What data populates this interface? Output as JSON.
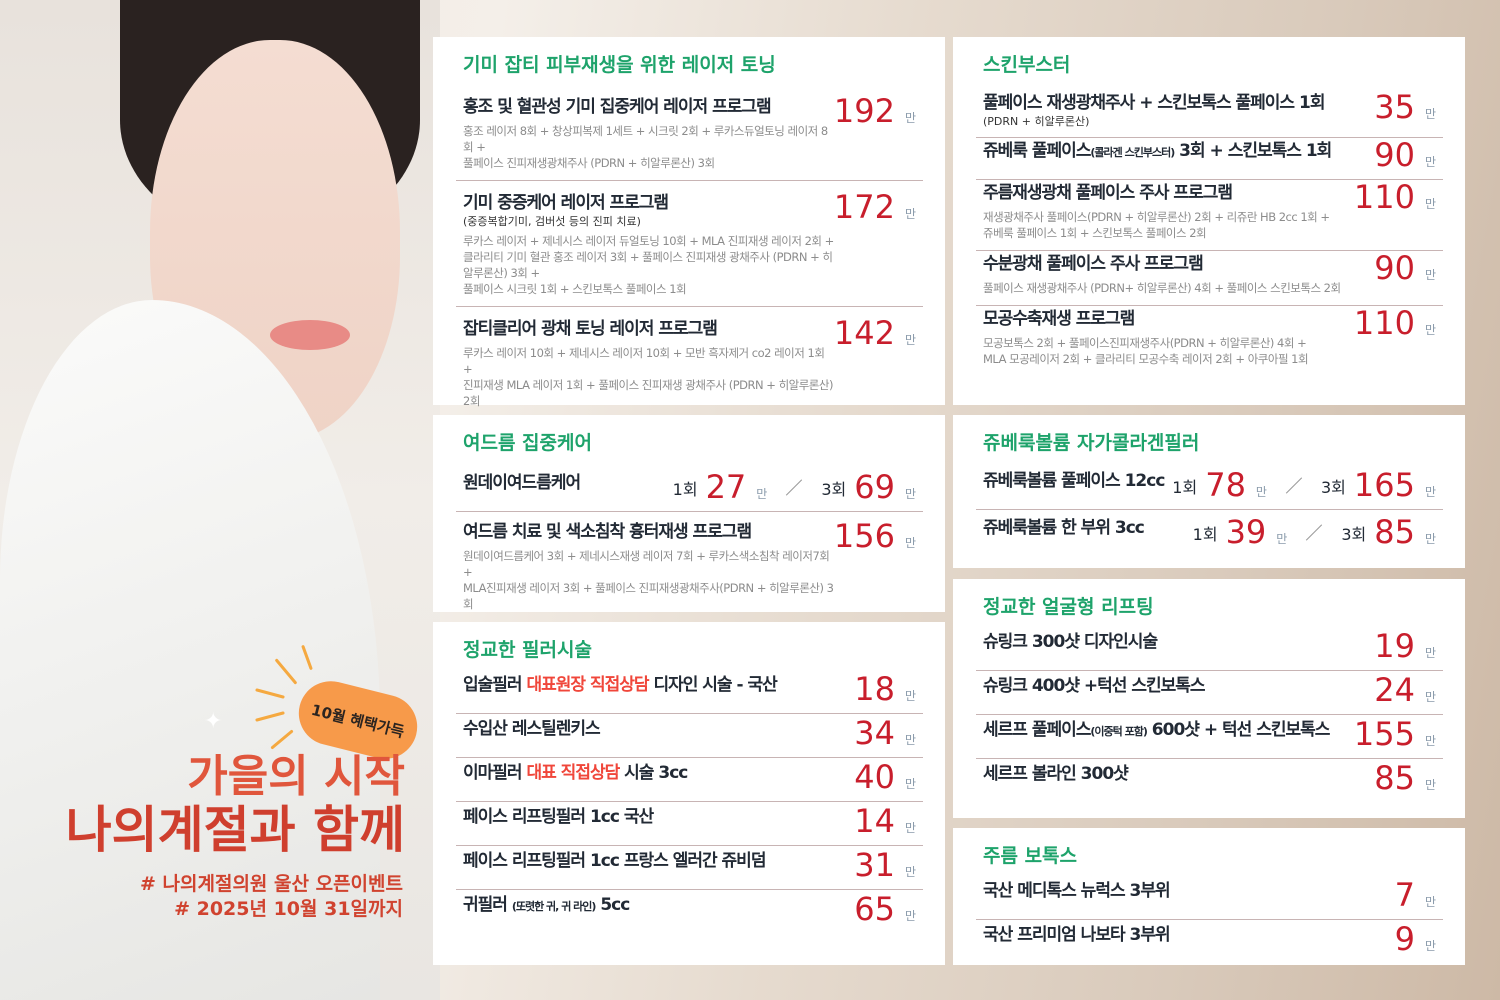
{
  "colors": {
    "accent_green": "#1ea36b",
    "price_red": "#c81e2c",
    "highlight_red": "#f0463a",
    "badge_orange": "#f79a4a",
    "headline_red": "#cf3f2e"
  },
  "promo": {
    "badge": "10월 혜택가득",
    "headline1": "가을의 시작",
    "headline2": "나의계절과 함께",
    "tag1": "# 나의계절의원 울산 오픈이벤트",
    "tag2": "# 2025년 10월 31일까지"
  },
  "unit": "만",
  "sections": [
    {
      "title": "기미 잡티 피부재생을 위한 레이저 토닝",
      "items": [
        {
          "name": [
            {
              "t": "홍조 및 혈관성 기미 집중케어 레이저 프로그램"
            }
          ],
          "price": "192",
          "detail": "홍조 레이저 8회 + 창상피복제 1세트 + 시크릿 2회 + 루카스듀얼토닝 레이저 8회 +\n풀페이스 진피재생광채주사 (PDRN + 히알루론산) 3회"
        },
        {
          "name": [
            {
              "t": "기미 중증케어 레이저 프로그램"
            }
          ],
          "sub": "(중증복합기미, 검버섯 등의 진피 치료)",
          "price": "172",
          "detail": "루카스 레이저 + 제네시스 레이저 듀얼토닝 10회 + MLA 진피재생 레이저 2회 +\n클라리티 기미 혈관 홍조 레이저 3회 + 풀페이스 진피재생 광채주사 (PDRN + 히알루론산)  3회 +\n풀페이스 시크릿 1회 + 스킨보톡스 풀페이스 1회"
        },
        {
          "name": [
            {
              "t": "잡티클리어 광채 토닝 레이저 프로그램"
            }
          ],
          "price": "142",
          "detail": "루카스 레이저 10회 + 제네시스 레이저 10회 + 모반 흑자제거 co2 레이저 1회 +\n진피재생 MLA 레이저 1회 + 풀페이스 진피재생 광채주사 (PDRN + 히알루론산) 2회"
        }
      ]
    },
    {
      "title": "여드름 집중케어",
      "items": [
        {
          "name": [
            {
              "t": "원데이여드름케어"
            }
          ],
          "dual": [
            {
              "count": "1회",
              "price": "27"
            },
            {
              "count": "3회",
              "price": "69"
            }
          ]
        },
        {
          "name": [
            {
              "t": "여드름 치료 및 색소침착 흉터재생 프로그램"
            }
          ],
          "price": "156",
          "detail": "원데이여드름케어 3회 + 제네시스재생 레이저 7회 + 루카스색소침착 레이저7회 +\nMLA진피재생 레이저 3회 + 풀페이스 진피재생광채주사(PDRN + 히알루론산) 3회"
        }
      ]
    },
    {
      "title": "정교한 필러시술",
      "items": [
        {
          "name": [
            {
              "t": "입술필러 "
            },
            {
              "t": "대표원장 직접상담",
              "h": true
            },
            {
              "t": " 디자인 시술 - 국산"
            }
          ],
          "price": "18"
        },
        {
          "name": [
            {
              "t": "수입산 레스틸렌키스"
            }
          ],
          "price": "34"
        },
        {
          "name": [
            {
              "t": "이마필러 "
            },
            {
              "t": "대표 직접상담",
              "h": true
            },
            {
              "t": " 시술 3cc"
            }
          ],
          "price": "40"
        },
        {
          "name": [
            {
              "t": "페이스 리프팅필러 1cc 국산"
            }
          ],
          "price": "14"
        },
        {
          "name": [
            {
              "t": "페이스 리프팅필러 1cc 프랑스 엘러간 쥬비덤"
            }
          ],
          "price": "31"
        },
        {
          "name": [
            {
              "t": "귀필러 "
            },
            {
              "t": "(또렷한 귀, 귀 라인)",
              "s": true
            },
            {
              "t": "  5cc"
            }
          ],
          "price": "65"
        }
      ]
    },
    {
      "title": "스킨부스터",
      "items": [
        {
          "name": [
            {
              "t": "풀페이스 재생광채주사 + 스킨보톡스 풀페이스 1회"
            }
          ],
          "sub": " (PDRN + 히알루론산)",
          "price": "35"
        },
        {
          "name": [
            {
              "t": "쥬베룩 풀페이스"
            },
            {
              "t": "(콜라겐 스킨부스터)",
              "s": true
            },
            {
              "t": " 3회 + 스킨보톡스 1회"
            }
          ],
          "price": "90"
        },
        {
          "name": [
            {
              "t": "주름재생광채 풀페이스 주사 프로그램"
            }
          ],
          "price": "110",
          "detail": "재생광채주사 풀페이스(PDRN + 히알루론산) 2회 + 리쥬란 HB 2cc 1회 +\n쥬베룩 풀페이스 1회 + 스킨보톡스 풀페이스 2회"
        },
        {
          "name": [
            {
              "t": "수분광채 풀페이스 주사  프로그램"
            }
          ],
          "price": "90",
          "detail": "풀페이스 재생광채주사 (PDRN+ 히알루론산) 4회 + 풀페이스 스킨보톡스 2회"
        },
        {
          "name": [
            {
              "t": "모공수축재생 프로그램"
            }
          ],
          "price": "110",
          "detail": "모공보톡스 2회 + 풀페이스진피재생주사(PDRN + 히알루론산) 4회 +\nMLA 모공레이저 2회 + 클라리티 모공수축 레이저 2회 + 아쿠아필 1회"
        }
      ]
    },
    {
      "title": "쥬베룩볼륨 자가콜라겐필러",
      "items": [
        {
          "name": [
            {
              "t": "쥬베룩볼륨 풀페이스 12cc"
            }
          ],
          "dual": [
            {
              "count": "1회",
              "price": "78"
            },
            {
              "count": "3회",
              "price": "165"
            }
          ]
        },
        {
          "name": [
            {
              "t": "쥬베룩볼륨 한 부위 3cc"
            }
          ],
          "dual": [
            {
              "count": "1회",
              "price": "39"
            },
            {
              "count": "3회",
              "price": "85"
            }
          ]
        }
      ]
    },
    {
      "title": "정교한 얼굴형 리프팅",
      "items": [
        {
          "name": [
            {
              "t": "슈링크 300샷 디자인시술"
            }
          ],
          "price": "19"
        },
        {
          "name": [
            {
              "t": "슈링크 400샷 +턱선 스킨보톡스"
            }
          ],
          "price": "24"
        },
        {
          "name": [
            {
              "t": "세르프 풀페이스"
            },
            {
              "t": "(이중턱 포함)",
              "s": true
            },
            {
              "t": " 600샷 + 턱선 스킨보톡스"
            }
          ],
          "price": "155"
        },
        {
          "name": [
            {
              "t": "세르프 볼라인 300샷"
            }
          ],
          "price": "85"
        }
      ]
    },
    {
      "title": "주름 보톡스",
      "items": [
        {
          "name": [
            {
              "t": "국산 메디톡스 뉴럭스 3부위"
            }
          ],
          "price": "7"
        },
        {
          "name": [
            {
              "t": "국산 프리미엄 나보타 3부위"
            }
          ],
          "price": "9"
        }
      ]
    }
  ]
}
